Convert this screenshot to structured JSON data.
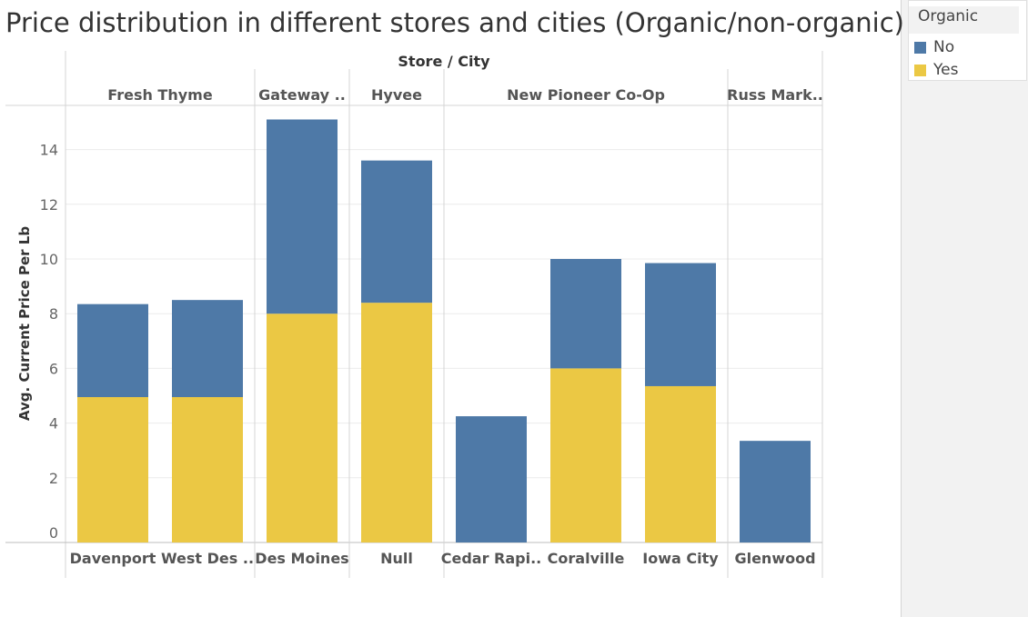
{
  "chart_data": {
    "type": "bar",
    "stacked": true,
    "title": "Price distribution in different stores and cities (Organic/non-organic)",
    "column_header": "Store / City",
    "ylabel": "Avg. Current Price Per Lb",
    "ylim": [
      0,
      16
    ],
    "yticks": [
      0,
      2,
      4,
      6,
      8,
      10,
      12,
      14
    ],
    "grid": true,
    "legend_position": "top-right",
    "legend_title": "Organic",
    "stores": [
      {
        "name": "Fresh Thyme",
        "cities": [
          "Davenport",
          "West Des .."
        ]
      },
      {
        "name": "Gateway ..",
        "cities": [
          "Des Moines"
        ]
      },
      {
        "name": "Hyvee",
        "cities": [
          "Null"
        ]
      },
      {
        "name": "New Pioneer Co-Op",
        "cities": [
          "Cedar Rapi..",
          "Coralville",
          "Iowa City"
        ]
      },
      {
        "name": "Russ Mark..",
        "cities": [
          "Glenwood"
        ]
      }
    ],
    "categories": [
      "Davenport",
      "West Des ..",
      "Des Moines",
      "Null",
      "Cedar Rapi..",
      "Coralville",
      "Iowa City",
      "Glenwood"
    ],
    "series": [
      {
        "name": "Yes",
        "color": "#ebc844",
        "values": [
          4.95,
          4.95,
          8.0,
          8.4,
          0,
          6.0,
          5.35,
          0
        ]
      },
      {
        "name": "No",
        "color": "#4e79a7",
        "values": [
          3.4,
          3.55,
          7.1,
          5.2,
          4.25,
          4.0,
          4.5,
          3.35
        ]
      }
    ],
    "legend": [
      {
        "name": "No",
        "color": "#4e79a7"
      },
      {
        "name": "Yes",
        "color": "#ebc844"
      }
    ]
  }
}
